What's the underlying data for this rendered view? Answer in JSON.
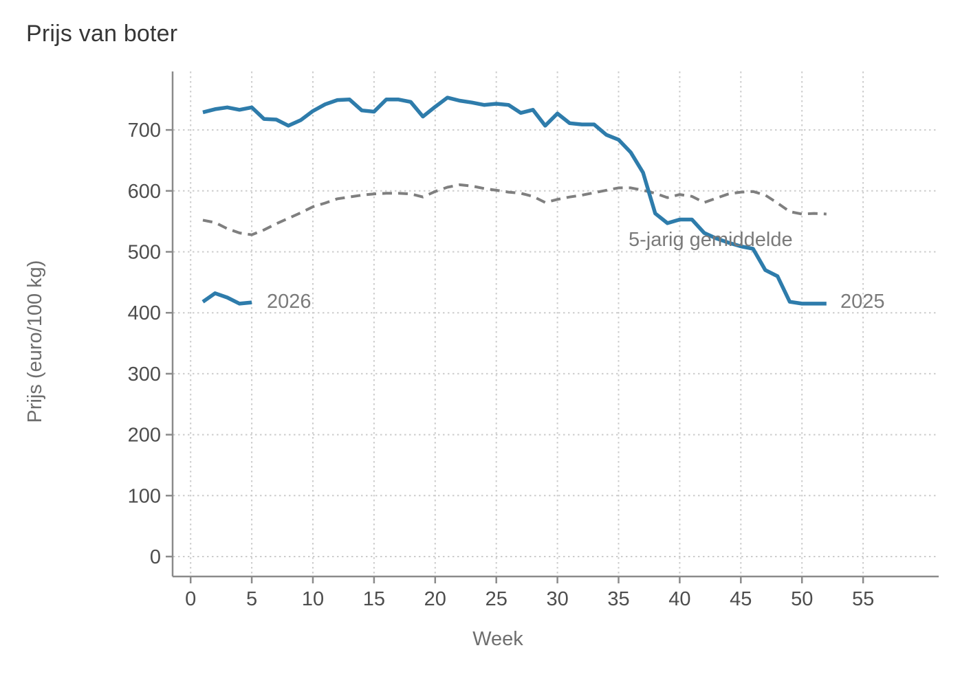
{
  "title": "Prijs van boter",
  "x_axis_label": "Week",
  "y_axis_label": "Prijs (euro/100 kg)",
  "colors": {
    "series_blue": "#2e7cab",
    "series_gray_dashed": "#7f7f7f",
    "gridline": "#cccccc",
    "axis_line": "#8a8a8a",
    "tick_text": "#4d4d4d",
    "axis_title_text": "#6e6e6e",
    "series_label_text": "#7a7a7a",
    "title_text": "#363636",
    "background": "#ffffff"
  },
  "chart_data": {
    "type": "line",
    "title": "Prijs van boter",
    "xlabel": "Week",
    "ylabel": "Prijs (euro/100 kg)",
    "x_ticks": [
      0,
      5,
      10,
      15,
      20,
      25,
      30,
      35,
      40,
      45,
      50,
      55
    ],
    "y_ticks": [
      0,
      100,
      200,
      300,
      400,
      500,
      600,
      700
    ],
    "xlim": [
      0,
      62
    ],
    "ylim": [
      0,
      795
    ],
    "grid": true,
    "grid_style": "dotted",
    "legend_position": "inline-labels-on-plot",
    "x_unit": "week",
    "series": [
      {
        "name": "2025",
        "style": "solid",
        "color": "#2e7cab",
        "line_width": 5.5,
        "start_week": 1,
        "values": [
          729,
          734,
          737,
          733,
          737,
          718,
          717,
          707,
          716,
          731,
          742,
          749,
          750,
          732,
          730,
          750,
          750,
          746,
          722,
          738,
          753,
          748,
          745,
          741,
          743,
          741,
          728,
          733,
          707,
          727,
          711,
          709,
          709,
          692,
          684,
          663,
          630,
          563,
          547,
          553,
          553,
          531,
          522,
          515,
          509,
          505,
          470,
          460,
          418,
          415,
          415,
          415
        ]
      },
      {
        "name": "2026",
        "style": "solid",
        "color": "#2e7cab",
        "line_width": 5.5,
        "start_week": 1,
        "values": [
          418,
          432,
          425,
          415,
          417
        ]
      },
      {
        "name": "5-jarig gemiddelde",
        "style": "dashed",
        "color": "#7f7f7f",
        "line_width": 4,
        "start_week": 1,
        "values": [
          552,
          548,
          538,
          531,
          528,
          536,
          546,
          555,
          564,
          574,
          580,
          587,
          590,
          593,
          595,
          596,
          596,
          595,
          590,
          599,
          606,
          610,
          608,
          604,
          601,
          598,
          596,
          591,
          581,
          586,
          590,
          593,
          597,
          601,
          605,
          605,
          601,
          596,
          589,
          594,
          591,
          581,
          588,
          595,
          598,
          599,
          593,
          580,
          566,
          562,
          563,
          562
        ]
      }
    ]
  }
}
